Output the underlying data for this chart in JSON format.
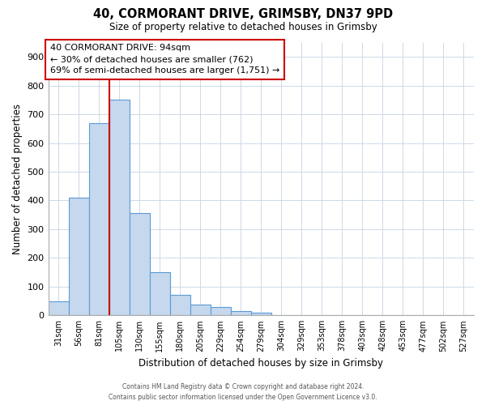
{
  "title": "40, CORMORANT DRIVE, GRIMSBY, DN37 9PD",
  "subtitle": "Size of property relative to detached houses in Grimsby",
  "xlabel": "Distribution of detached houses by size in Grimsby",
  "ylabel": "Number of detached properties",
  "bar_labels": [
    "31sqm",
    "56sqm",
    "81sqm",
    "105sqm",
    "130sqm",
    "155sqm",
    "180sqm",
    "205sqm",
    "229sqm",
    "254sqm",
    "279sqm",
    "304sqm",
    "329sqm",
    "353sqm",
    "378sqm",
    "403sqm",
    "428sqm",
    "453sqm",
    "477sqm",
    "502sqm",
    "527sqm"
  ],
  "bar_values": [
    50,
    410,
    670,
    750,
    355,
    150,
    70,
    37,
    30,
    15,
    10,
    2,
    0,
    0,
    0,
    0,
    2,
    0,
    0,
    0,
    2
  ],
  "bar_color": "#c5d8ee",
  "bar_edge_color": "#5b9bd5",
  "ylim": [
    0,
    950
  ],
  "yticks": [
    0,
    100,
    200,
    300,
    400,
    500,
    600,
    700,
    800,
    900
  ],
  "vline_x": 2.5,
  "vline_color": "#cc0000",
  "annotation_title": "40 CORMORANT DRIVE: 94sqm",
  "annotation_line1": "← 30% of detached houses are smaller (762)",
  "annotation_line2": "69% of semi-detached houses are larger (1,751) →",
  "annotation_box_color": "#ffffff",
  "annotation_box_edge": "#cc0000",
  "footer_line1": "Contains HM Land Registry data © Crown copyright and database right 2024.",
  "footer_line2": "Contains public sector information licensed under the Open Government Licence v3.0.",
  "background_color": "#ffffff",
  "grid_color": "#cdd9e8"
}
